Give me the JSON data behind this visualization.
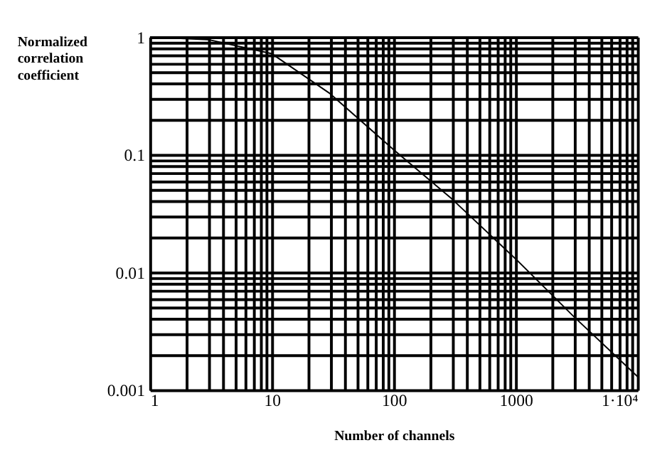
{
  "chart_data": {
    "type": "line",
    "xlabel": "Number of channels",
    "ylabel": "Normalized correlation coefficient",
    "log": "xy",
    "grid": true,
    "line_style": "solid",
    "marker": "none",
    "x": [
      1,
      3,
      10,
      30,
      100,
      300,
      1000,
      3000,
      10000
    ],
    "series": [
      {
        "color": "#000000",
        "values": [
          1,
          0.95,
          0.72,
          0.33,
          0.11,
          0.042,
          0.013,
          0.0042,
          0.0013
        ]
      }
    ],
    "xlim": [
      1,
      10000
    ],
    "ylim": [
      0.001,
      1
    ],
    "xticks": [
      1,
      {
        "value": 2,
        "label": null
      },
      {
        "value": 3,
        "label": null
      },
      {
        "value": 4,
        "label": null
      },
      {
        "value": 5,
        "label": null
      },
      {
        "value": 6,
        "label": null
      },
      {
        "value": 7,
        "label": null
      },
      {
        "value": 8,
        "label": null
      },
      {
        "value": 9,
        "label": null
      },
      10,
      {
        "value": 20,
        "label": null
      },
      {
        "value": 30,
        "label": null
      },
      {
        "value": 40,
        "label": null
      },
      {
        "value": 50,
        "label": null
      },
      {
        "value": 60,
        "label": null
      },
      {
        "value": 70,
        "label": null
      },
      {
        "value": 80,
        "label": null
      },
      {
        "value": 90,
        "label": null
      },
      100,
      {
        "value": 200,
        "label": null
      },
      {
        "value": 300,
        "label": null
      },
      {
        "value": 400,
        "label": null
      },
      {
        "value": 500,
        "label": null
      },
      {
        "value": 600,
        "label": null
      },
      {
        "value": 700,
        "label": null
      },
      {
        "value": 800,
        "label": null
      },
      {
        "value": 900,
        "label": null
      },
      1000,
      {
        "value": 2000,
        "label": null
      },
      {
        "value": 3000,
        "label": null
      },
      {
        "value": 4000,
        "label": null
      },
      {
        "value": 5000,
        "label": null
      },
      {
        "value": 6000,
        "label": null
      },
      {
        "value": 7000,
        "label": null
      },
      {
        "value": 8000,
        "label": null
      },
      {
        "value": 9000,
        "label": null
      },
      {
        "value": 10000,
        "label": "1·10⁴"
      }
    ],
    "yticks": [
      0.001,
      {
        "value": 0.002,
        "label": null
      },
      {
        "value": 0.003,
        "label": null
      },
      {
        "value": 0.004,
        "label": null
      },
      {
        "value": 0.005,
        "label": null
      },
      {
        "value": 0.006,
        "label": null
      },
      {
        "value": 0.007,
        "label": null
      },
      {
        "value": 0.008,
        "label": null
      },
      {
        "value": 0.009,
        "label": null
      },
      0.01,
      {
        "value": 0.02,
        "label": null
      },
      {
        "value": 0.03,
        "label": null
      },
      {
        "value": 0.04,
        "label": null
      },
      {
        "value": 0.05,
        "label": null
      },
      {
        "value": 0.06,
        "label": null
      },
      {
        "value": 0.07,
        "label": null
      },
      {
        "value": 0.08,
        "label": null
      },
      {
        "value": 0.09,
        "label": null
      },
      0.1,
      {
        "value": 0.2,
        "label": null
      },
      {
        "value": 0.3,
        "label": null
      },
      {
        "value": 0.4,
        "label": null
      },
      {
        "value": 0.5,
        "label": null
      },
      {
        "value": 0.6,
        "label": null
      },
      {
        "value": 0.7,
        "label": null
      },
      {
        "value": 0.8,
        "label": null
      },
      {
        "value": 0.9,
        "label": null
      },
      1
    ]
  }
}
